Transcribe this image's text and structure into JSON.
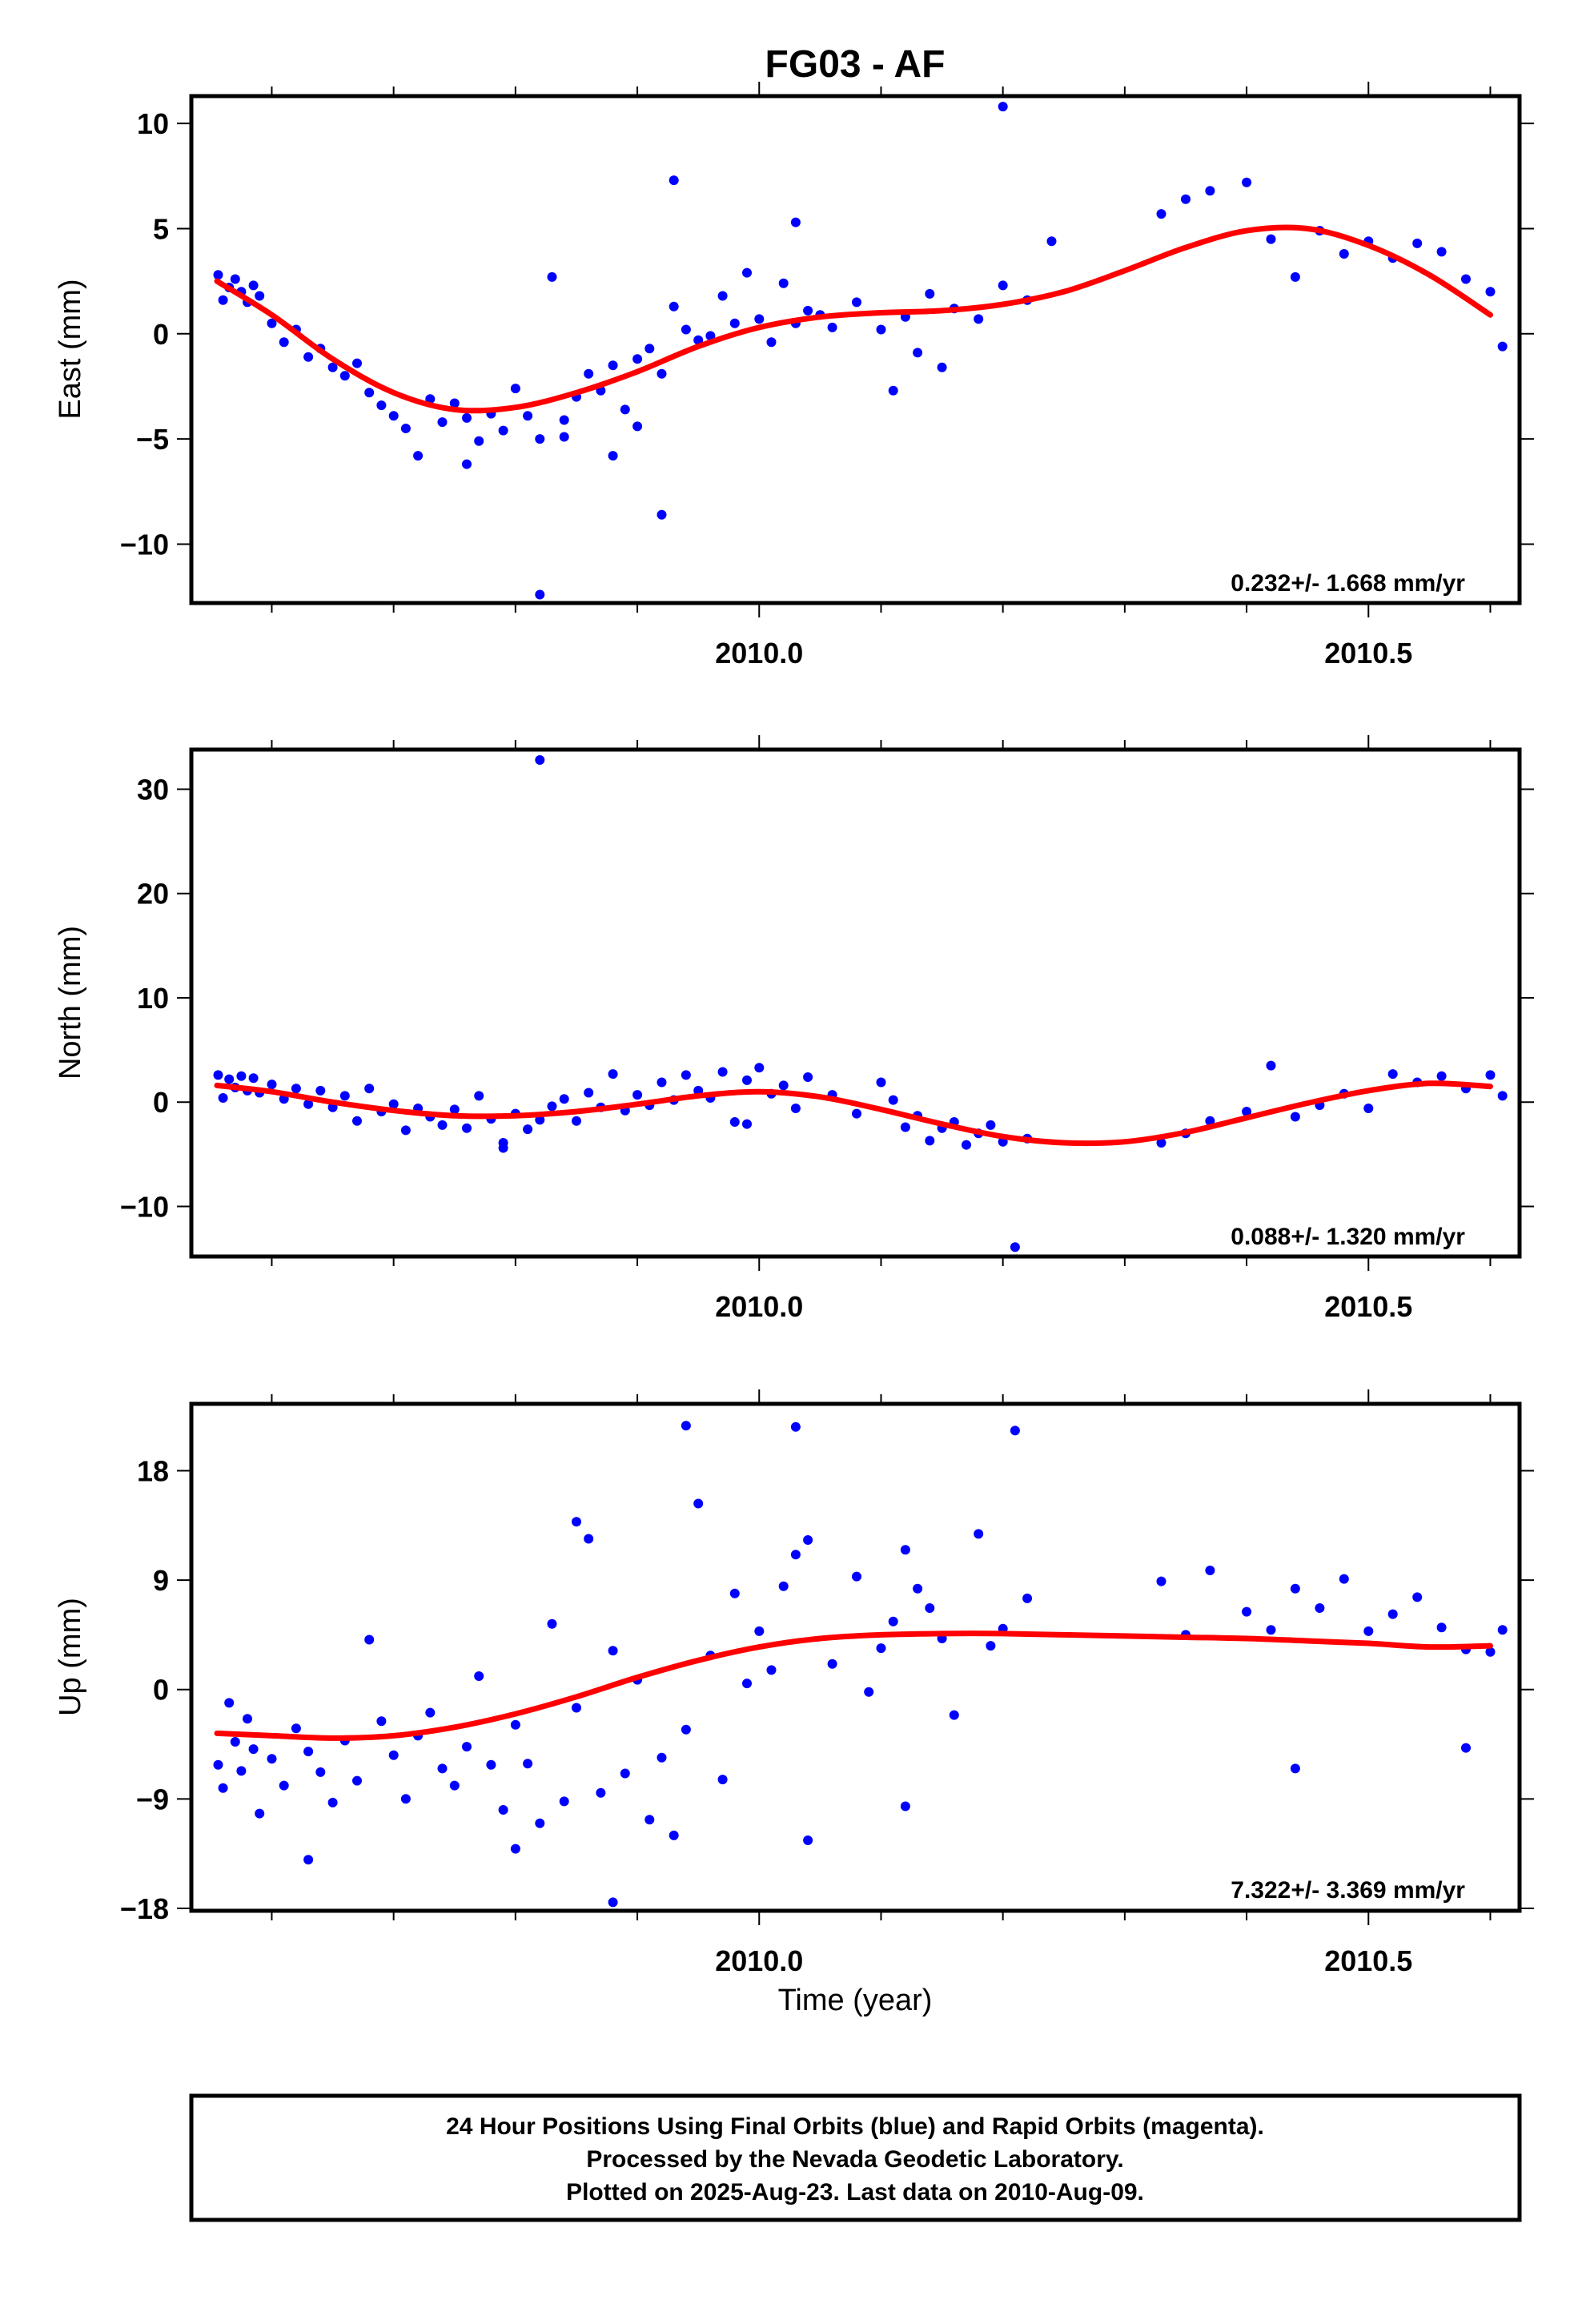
{
  "figure": {
    "title": "FG03 - AF",
    "colors": {
      "points": "#0000ff",
      "fit": "#ff0000",
      "frame": "#000000"
    },
    "footer": [
      "24 Hour Positions Using Final Orbits (blue) and Rapid Orbits (magenta).",
      "Processed by the Nevada Geodetic Laboratory.",
      "Plotted on 2025-Aug-23. Last data on 2010-Aug-09."
    ]
  },
  "chart_data": [
    {
      "type": "scatter",
      "title": "FG03 - AF",
      "ylabel": "East (mm)",
      "xlabel": "",
      "xlim": [
        2009.534,
        2010.624
      ],
      "ylim": [
        -12.8,
        11.3
      ],
      "xticks": [
        2010.0,
        2010.5
      ],
      "xtick_labels": [
        "2010.0",
        "2010.5"
      ],
      "yticks": [
        -10,
        -5,
        0,
        5,
        10
      ],
      "ytick_labels": [
        "−10",
        "−5",
        "0",
        "5",
        "10"
      ],
      "rate_label": "0.232+/- 1.668 mm/yr",
      "grid": false,
      "fit": {
        "name": "",
        "x": [
          2009.555,
          2009.6,
          2009.65,
          2009.7,
          2009.75,
          2009.8,
          2009.85,
          2009.9,
          2009.95,
          2010.0,
          2010.05,
          2010.1,
          2010.15,
          2010.2,
          2010.25,
          2010.3,
          2010.35,
          2010.4,
          2010.45,
          2010.5,
          2010.55,
          2010.6
        ],
        "y": [
          2.5,
          0.9,
          -1.2,
          -2.8,
          -3.6,
          -3.5,
          -2.8,
          -1.8,
          -0.6,
          0.3,
          0.8,
          1.0,
          1.1,
          1.4,
          2.0,
          3.0,
          4.1,
          4.9,
          5.0,
          4.2,
          2.8,
          0.9
        ]
      },
      "points": {
        "x": [
          2009.556,
          2009.56,
          2009.565,
          2009.57,
          2009.575,
          2009.58,
          2009.585,
          2009.59,
          2009.6,
          2009.61,
          2009.62,
          2009.63,
          2009.64,
          2009.65,
          2009.66,
          2009.67,
          2009.68,
          2009.69,
          2009.7,
          2009.71,
          2009.72,
          2009.73,
          2009.74,
          2009.75,
          2009.76,
          2009.77,
          2009.78,
          2009.79,
          2009.8,
          2009.81,
          2009.82,
          2009.83,
          2009.84,
          2009.85,
          2009.86,
          2009.87,
          2009.88,
          2009.89,
          2009.9,
          2009.91,
          2009.92,
          2009.93,
          2009.94,
          2009.95,
          2009.96,
          2009.97,
          2009.98,
          2009.99,
          2010.0,
          2010.01,
          2010.02,
          2010.03,
          2010.04,
          2010.05,
          2010.06,
          2010.08,
          2010.1,
          2010.12,
          2010.14,
          2010.16,
          2010.18,
          2010.2,
          2010.22,
          2010.24,
          2010.33,
          2010.35,
          2010.37,
          2010.4,
          2010.42,
          2010.44,
          2010.46,
          2010.48,
          2010.5,
          2010.52,
          2010.54,
          2010.56,
          2010.58,
          2010.6,
          2010.61,
          2009.82,
          2009.92,
          2009.93,
          2010.03,
          2010.2,
          2009.76,
          2009.84,
          2009.88,
          2009.9,
          2010.11,
          2010.15,
          2010.13
        ],
        "y": [
          2.8,
          1.6,
          2.2,
          2.6,
          2.0,
          1.5,
          2.3,
          1.8,
          0.5,
          -0.4,
          0.2,
          -1.1,
          -0.7,
          -1.6,
          -2.0,
          -1.4,
          -2.8,
          -3.4,
          -3.9,
          -4.5,
          -5.8,
          -3.1,
          -4.2,
          -3.3,
          -4.0,
          -5.1,
          -3.8,
          -4.6,
          -2.6,
          -3.9,
          -5.0,
          2.7,
          -4.1,
          -3.0,
          -1.9,
          -2.7,
          -1.5,
          -3.6,
          -1.2,
          -0.7,
          -1.9,
          1.3,
          0.2,
          -0.3,
          -0.1,
          1.8,
          0.5,
          2.9,
          0.7,
          -0.4,
          2.4,
          0.5,
          1.1,
          0.9,
          0.3,
          1.5,
          0.2,
          0.8,
          1.9,
          1.2,
          0.7,
          2.3,
          1.6,
          4.4,
          5.7,
          6.4,
          6.8,
          7.2,
          4.5,
          2.7,
          4.9,
          3.8,
          4.4,
          3.6,
          4.3,
          3.9,
          2.6,
          2.0,
          -0.6,
          -12.4,
          -8.6,
          7.3,
          5.3,
          10.8,
          -6.2,
          -4.9,
          -5.8,
          -4.4,
          -2.7,
          -1.6,
          -0.9
        ]
      }
    },
    {
      "type": "scatter",
      "ylabel": "North (mm)",
      "xlabel": "",
      "xlim": [
        2009.534,
        2010.624
      ],
      "ylim": [
        -14.8,
        33.8
      ],
      "xticks": [
        2010.0,
        2010.5
      ],
      "xtick_labels": [
        "2010.0",
        "2010.5"
      ],
      "yticks": [
        -10,
        0,
        10,
        20,
        30
      ],
      "ytick_labels": [
        "−10",
        "0",
        "10",
        "20",
        "30"
      ],
      "rate_label": "0.088+/- 1.320 mm/yr",
      "grid": false,
      "fit": {
        "name": "",
        "x": [
          2009.555,
          2009.6,
          2009.65,
          2009.7,
          2009.75,
          2009.8,
          2009.85,
          2009.9,
          2009.95,
          2010.0,
          2010.05,
          2010.1,
          2010.15,
          2010.2,
          2010.25,
          2010.3,
          2010.35,
          2010.4,
          2010.45,
          2010.5,
          2010.55,
          2010.6
        ],
        "y": [
          1.6,
          1.0,
          0.0,
          -0.8,
          -1.3,
          -1.3,
          -0.9,
          -0.2,
          0.6,
          1.0,
          0.5,
          -0.7,
          -2.1,
          -3.3,
          -3.9,
          -3.8,
          -2.9,
          -1.5,
          -0.1,
          1.1,
          1.8,
          1.5
        ]
      },
      "points": {
        "x": [
          2009.556,
          2009.56,
          2009.565,
          2009.57,
          2009.575,
          2009.58,
          2009.585,
          2009.59,
          2009.6,
          2009.61,
          2009.62,
          2009.63,
          2009.64,
          2009.65,
          2009.66,
          2009.67,
          2009.68,
          2009.69,
          2009.7,
          2009.71,
          2009.72,
          2009.73,
          2009.74,
          2009.75,
          2009.76,
          2009.77,
          2009.78,
          2009.79,
          2009.8,
          2009.81,
          2009.82,
          2009.83,
          2009.84,
          2009.85,
          2009.86,
          2009.87,
          2009.88,
          2009.89,
          2009.9,
          2009.91,
          2009.92,
          2009.93,
          2009.94,
          2009.95,
          2009.96,
          2009.97,
          2009.98,
          2009.99,
          2010.0,
          2010.01,
          2010.02,
          2010.03,
          2010.04,
          2010.06,
          2010.08,
          2010.1,
          2010.11,
          2010.12,
          2010.13,
          2010.14,
          2010.15,
          2010.16,
          2010.17,
          2010.18,
          2010.19,
          2010.2,
          2010.22,
          2010.33,
          2010.35,
          2010.37,
          2010.4,
          2010.42,
          2010.44,
          2010.46,
          2010.48,
          2010.5,
          2010.52,
          2010.54,
          2010.56,
          2010.58,
          2010.6,
          2010.61,
          2009.82,
          2010.21,
          2009.79,
          2009.99
        ],
        "y": [
          2.6,
          0.4,
          2.2,
          1.4,
          2.5,
          1.1,
          2.3,
          0.9,
          1.7,
          0.3,
          1.3,
          -0.2,
          1.1,
          -0.5,
          0.6,
          -1.8,
          1.3,
          -0.9,
          -0.2,
          -2.7,
          -0.6,
          -1.4,
          -2.2,
          -0.7,
          -2.5,
          0.6,
          -1.6,
          -3.9,
          -1.1,
          -2.6,
          -1.7,
          -0.4,
          0.3,
          -1.8,
          0.9,
          -0.5,
          2.7,
          -0.8,
          0.7,
          -0.3,
          1.9,
          0.2,
          2.6,
          1.1,
          0.4,
          2.9,
          -1.9,
          2.1,
          3.3,
          0.8,
          1.6,
          -0.6,
          2.4,
          0.7,
          -1.1,
          1.9,
          0.2,
          -2.4,
          -1.3,
          -3.7,
          -2.5,
          -1.9,
          -4.1,
          -3.0,
          -2.2,
          -3.8,
          -3.5,
          -3.9,
          -3.0,
          -1.8,
          -0.9,
          3.5,
          -1.4,
          -0.3,
          0.8,
          -0.6,
          2.7,
          1.9,
          2.5,
          1.3,
          2.6,
          0.6,
          32.8,
          -13.9,
          -4.4,
          -2.1
        ]
      }
    },
    {
      "type": "scatter",
      "ylabel": "Up (mm)",
      "xlabel": "Time (year)",
      "xlim": [
        2009.534,
        2010.624
      ],
      "ylim": [
        -18.2,
        23.5
      ],
      "xticks": [
        2010.0,
        2010.5
      ],
      "xtick_labels": [
        "2010.0",
        "2010.5"
      ],
      "yticks": [
        -18,
        -9,
        0,
        9,
        18
      ],
      "ytick_labels": [
        "−18",
        "−9",
        "0",
        "9",
        "18"
      ],
      "rate_label": "7.322+/- 3.369 mm/yr",
      "grid": false,
      "fit": {
        "name": "",
        "x": [
          2009.555,
          2009.6,
          2009.65,
          2009.7,
          2009.75,
          2009.8,
          2009.85,
          2009.9,
          2009.95,
          2010.0,
          2010.05,
          2010.1,
          2010.15,
          2010.2,
          2010.25,
          2010.3,
          2010.35,
          2010.4,
          2010.45,
          2010.5,
          2010.55,
          2010.6
        ],
        "y": [
          -3.6,
          -3.8,
          -4.0,
          -3.8,
          -3.1,
          -2.0,
          -0.6,
          1.0,
          2.4,
          3.5,
          4.2,
          4.5,
          4.6,
          4.6,
          4.5,
          4.4,
          4.3,
          4.2,
          4.0,
          3.8,
          3.5,
          3.6
        ]
      },
      "points": {
        "x": [
          2009.556,
          2009.56,
          2009.565,
          2009.57,
          2009.575,
          2009.58,
          2009.585,
          2009.59,
          2009.6,
          2009.61,
          2009.62,
          2009.63,
          2009.64,
          2009.65,
          2009.66,
          2009.67,
          2009.68,
          2009.69,
          2009.7,
          2009.71,
          2009.72,
          2009.73,
          2009.74,
          2009.75,
          2009.76,
          2009.77,
          2009.78,
          2009.79,
          2009.8,
          2009.81,
          2009.82,
          2009.83,
          2009.84,
          2009.85,
          2009.86,
          2009.87,
          2009.88,
          2009.89,
          2009.9,
          2009.91,
          2009.92,
          2009.93,
          2009.94,
          2009.95,
          2009.96,
          2009.97,
          2009.98,
          2009.99,
          2010.0,
          2010.01,
          2010.02,
          2010.03,
          2010.04,
          2010.06,
          2010.08,
          2010.09,
          2010.1,
          2010.11,
          2010.12,
          2010.13,
          2010.14,
          2010.15,
          2010.16,
          2010.18,
          2010.19,
          2010.2,
          2010.22,
          2010.33,
          2010.35,
          2010.37,
          2010.4,
          2010.42,
          2010.44,
          2010.46,
          2010.48,
          2010.5,
          2010.52,
          2010.54,
          2010.56,
          2010.58,
          2010.6,
          2010.61,
          2009.94,
          2010.03,
          2010.21,
          2009.88,
          2009.63,
          2010.12,
          2010.04,
          2010.44,
          2010.58,
          2009.85,
          2009.8
        ],
        "y": [
          -6.2,
          -8.1,
          -1.1,
          -4.3,
          -6.7,
          -2.4,
          -4.9,
          -10.2,
          -5.7,
          -7.9,
          -3.2,
          -5.1,
          -6.8,
          -9.3,
          -4.2,
          -7.5,
          4.1,
          -2.6,
          -5.4,
          -9.0,
          -3.8,
          -1.9,
          -6.5,
          -7.9,
          -4.7,
          1.1,
          -6.2,
          -9.9,
          -2.9,
          -6.1,
          -11.0,
          5.4,
          -9.2,
          -1.5,
          12.4,
          -8.5,
          3.2,
          -6.9,
          0.8,
          -10.7,
          -5.6,
          -12.0,
          -3.3,
          15.3,
          2.8,
          -7.4,
          7.9,
          0.5,
          4.8,
          1.6,
          8.5,
          11.1,
          12.3,
          2.1,
          9.3,
          -0.2,
          3.4,
          5.6,
          11.5,
          8.3,
          6.7,
          4.2,
          -2.1,
          12.8,
          3.6,
          5.0,
          7.5,
          8.9,
          4.5,
          9.8,
          6.4,
          4.9,
          8.3,
          6.7,
          9.1,
          4.8,
          6.2,
          7.6,
          5.1,
          3.3,
          3.1,
          4.9,
          21.7,
          21.6,
          21.3,
          -17.5,
          -14.0,
          -9.6,
          -12.4,
          -6.5,
          -4.8,
          13.8,
          -13.1
        ]
      }
    }
  ]
}
